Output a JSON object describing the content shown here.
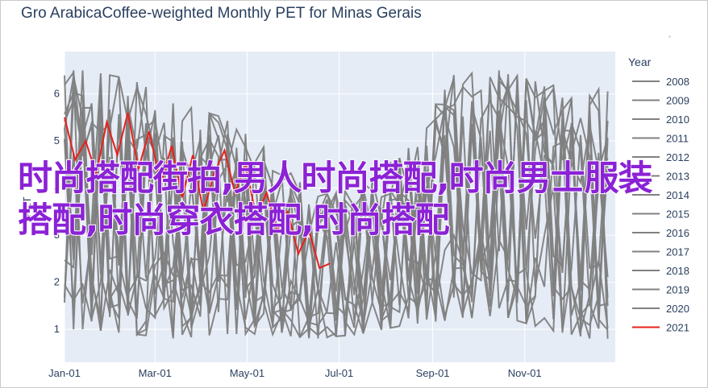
{
  "chart_data": {
    "type": "line",
    "title": "Gro ArabicaCoffee-weighted Monthly PET for Minas Gerais",
    "ylabel": "PET",
    "xlabel": "",
    "x_ticks": [
      "Jan-01",
      "Mar-01",
      "May-01",
      "Jul-01",
      "Sep-01",
      "Nov-01"
    ],
    "x_range": [
      "2000-01-01",
      "2000-12-31"
    ],
    "y_ticks": [
      1,
      2,
      3,
      4,
      5,
      6
    ],
    "ylim": [
      0.3,
      6.9
    ],
    "legend_title": "Year",
    "legend_position": "right",
    "grid": true,
    "series": [
      {
        "name": "2008",
        "color": "#808080"
      },
      {
        "name": "2009",
        "color": "#808080"
      },
      {
        "name": "2010",
        "color": "#808080"
      },
      {
        "name": "2011",
        "color": "#808080"
      },
      {
        "name": "2012",
        "color": "#808080"
      },
      {
        "name": "2013",
        "color": "#808080"
      },
      {
        "name": "2014",
        "color": "#808080"
      },
      {
        "name": "2015",
        "color": "#808080"
      },
      {
        "name": "2016",
        "color": "#808080"
      },
      {
        "name": "2017",
        "color": "#808080"
      },
      {
        "name": "2018",
        "color": "#808080"
      },
      {
        "name": "2019",
        "color": "#808080"
      },
      {
        "name": "2020",
        "color": "#808080"
      },
      {
        "name": "2021",
        "color": "#e8201a",
        "x": [
          "01-01",
          "01-08",
          "01-15",
          "01-22",
          "01-29",
          "02-05",
          "02-12",
          "02-19",
          "02-26",
          "03-05",
          "03-12",
          "03-19",
          "03-26",
          "04-02",
          "04-09",
          "04-16",
          "04-23",
          "04-30",
          "05-07",
          "05-14",
          "05-21",
          "05-28",
          "06-04",
          "06-11",
          "06-18",
          "06-25"
        ],
        "values": [
          5.5,
          4.6,
          5.0,
          4.3,
          5.4,
          4.7,
          5.6,
          4.4,
          5.2,
          4.1,
          4.9,
          3.8,
          4.7,
          3.5,
          4.3,
          4.8,
          3.9,
          4.5,
          3.4,
          3.9,
          3.1,
          3.5,
          2.6,
          3.1,
          2.3,
          2.4
        ]
      }
    ],
    "gray_band_description_values": {
      "x": [
        "01",
        "02",
        "03",
        "04",
        "05",
        "06",
        "07",
        "08",
        "09",
        "10",
        "11",
        "12"
      ],
      "upper": [
        6.5,
        6.3,
        5.8,
        5.5,
        4.8,
        3.8,
        4.1,
        4.8,
        6.4,
        6.5,
        6.2,
        6.1
      ],
      "lower": [
        1.0,
        0.9,
        0.8,
        0.9,
        0.9,
        0.8,
        0.9,
        1.1,
        1.2,
        1.3,
        1.0,
        0.8
      ]
    }
  },
  "overlay_text": "时尚搭配街拍,男人时尚搭配,时尚男士服装搭配,时尚穿衣搭配,时尚搭配"
}
